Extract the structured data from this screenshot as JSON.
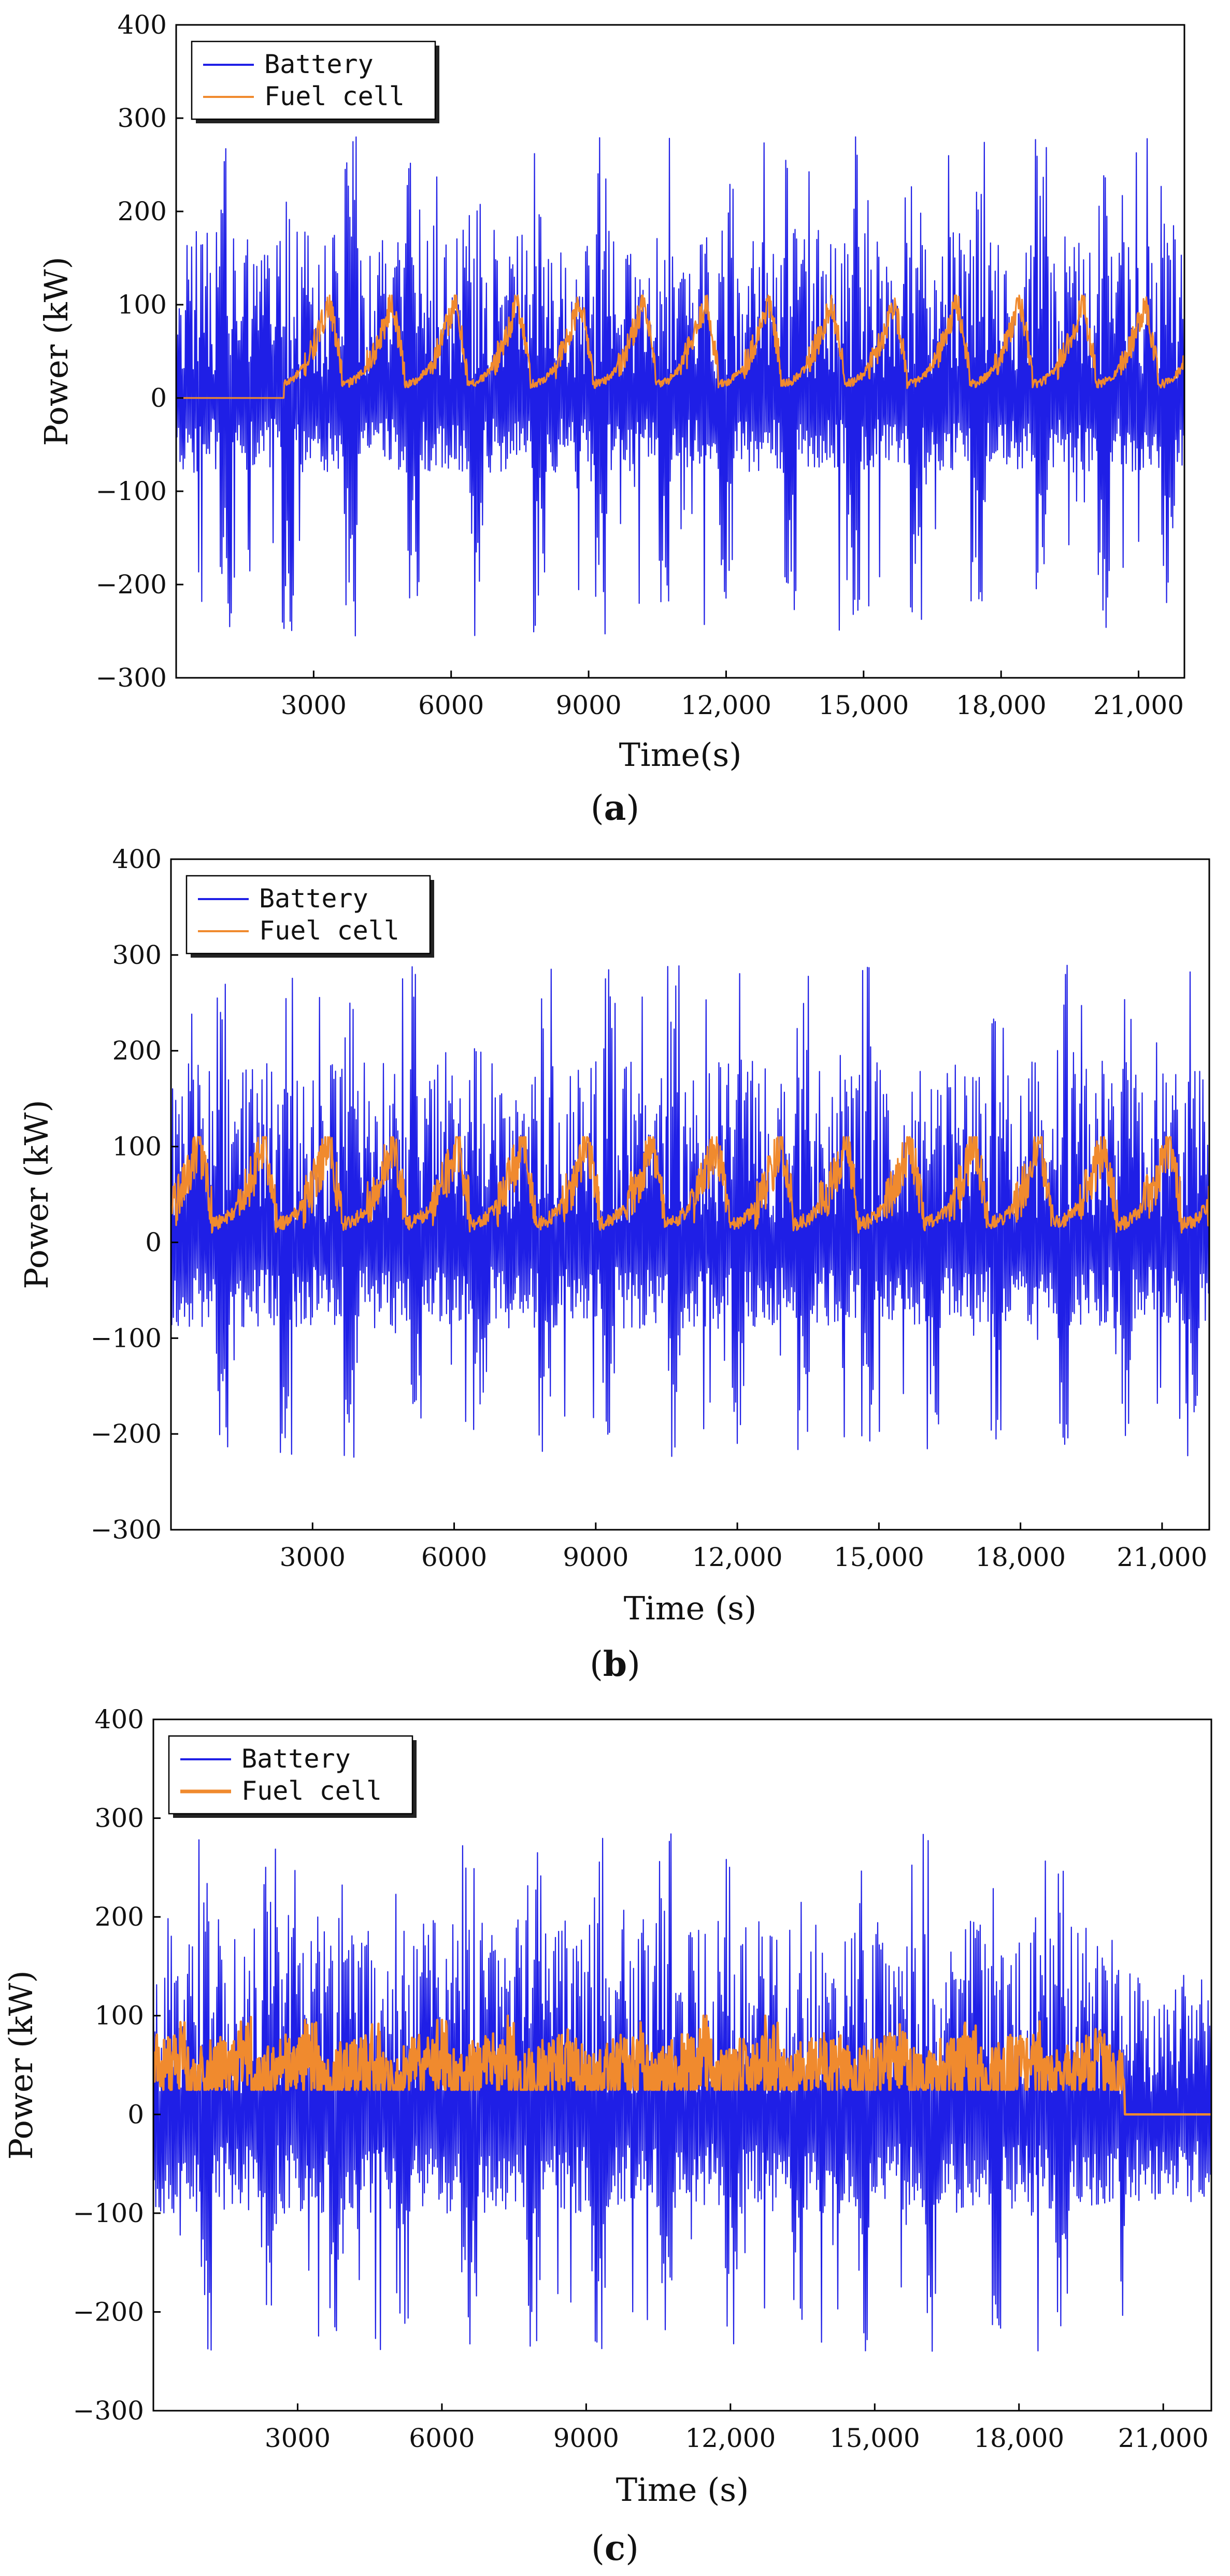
{
  "colors": {
    "battery": "#1f1fe6",
    "fuel_cell": "#f08a2e",
    "axis": "#000000"
  },
  "chart_data": [
    {
      "type": "line",
      "caption_open": "(",
      "caption_letter": "a",
      "caption_close": ")",
      "xlabel": "Time(s)",
      "ylabel": "Power (kW)",
      "xlim": [
        0,
        22000
      ],
      "ylim": [
        -300,
        400
      ],
      "xticks": [
        3000,
        6000,
        9000,
        12000,
        15000,
        18000,
        21000
      ],
      "xtick_labels": [
        "3000",
        "6000",
        "9000",
        "12,000",
        "15,000",
        "18,000",
        "21,000"
      ],
      "yticks": [
        -300,
        -200,
        -100,
        0,
        100,
        200,
        300,
        400
      ],
      "ytick_labels": [
        "−300",
        "−200",
        "−100",
        "0",
        "100",
        "200",
        "300",
        "400"
      ],
      "legend": [
        "Battery",
        "Fuel cell"
      ],
      "legend_position": "top-left",
      "series": [
        {
          "name": "Battery",
          "kind": "oscillation",
          "cycle_s": 1370,
          "base_max": 180,
          "base_min": -90,
          "peak_max": 280,
          "peak_min": -265
        },
        {
          "name": "Fuel cell",
          "kind": "sawtooth",
          "off_until_s": 2350,
          "off_value": 0,
          "cycle_s": 1370,
          "base": 15,
          "peak": 105,
          "spike": 0.35
        }
      ]
    },
    {
      "type": "line",
      "caption_open": "(",
      "caption_letter": "b",
      "caption_close": ")",
      "xlabel": "Time (s)",
      "ylabel": "Power (kW)",
      "xlim": [
        0,
        22000
      ],
      "ylim": [
        -300,
        400
      ],
      "xticks": [
        3000,
        6000,
        9000,
        12000,
        15000,
        18000,
        21000
      ],
      "xtick_labels": [
        "3000",
        "6000",
        "9000",
        "12,000",
        "15,000",
        "18,000",
        "21,000"
      ],
      "yticks": [
        -300,
        -200,
        -100,
        0,
        100,
        200,
        300,
        400
      ],
      "ytick_labels": [
        "−300",
        "−200",
        "−100",
        "0",
        "100",
        "200",
        "300",
        "400"
      ],
      "legend": [
        "Battery",
        "Fuel cell"
      ],
      "legend_position": "top-left",
      "series": [
        {
          "name": "Battery",
          "kind": "oscillation",
          "cycle_s": 1370,
          "base_max": 190,
          "base_min": -100,
          "peak_max": 290,
          "peak_min": -235
        },
        {
          "name": "Fuel cell",
          "kind": "sawtooth",
          "off_until_s": 0,
          "off_value": 0,
          "cycle_s": 1370,
          "base": 20,
          "peak": 105,
          "spike": 0.6
        }
      ]
    },
    {
      "type": "line",
      "caption_open": "(",
      "caption_letter": "c",
      "caption_close": ")",
      "xlabel": "Time (s)",
      "ylabel": "Power (kW)",
      "xlim": [
        0,
        22000
      ],
      "ylim": [
        -300,
        400
      ],
      "xticks": [
        3000,
        6000,
        9000,
        12000,
        15000,
        18000,
        21000
      ],
      "xtick_labels": [
        "3000",
        "6000",
        "9000",
        "12,000",
        "15,000",
        "18,000",
        "21,000"
      ],
      "yticks": [
        -300,
        -200,
        -100,
        0,
        100,
        200,
        300,
        400
      ],
      "ytick_labels": [
        "−300",
        "−200",
        "−100",
        "0",
        "100",
        "200",
        "300",
        "400"
      ],
      "legend": [
        "Battery",
        "Fuel cell"
      ],
      "legend_position": "top-left",
      "series": [
        {
          "name": "Battery",
          "kind": "oscillation",
          "cycle_s": 1370,
          "base_max": 200,
          "base_min": -110,
          "peak_max": 285,
          "peak_min": -250,
          "reduced_after_s": 20200,
          "reduced_max": 145,
          "reduced_min": -100
        },
        {
          "name": "Fuel cell",
          "kind": "band",
          "off_after_s": 20200,
          "off_value": 0,
          "cycle_s": 1370,
          "base": 25,
          "peak": 100,
          "spike": 1.0
        }
      ]
    }
  ]
}
